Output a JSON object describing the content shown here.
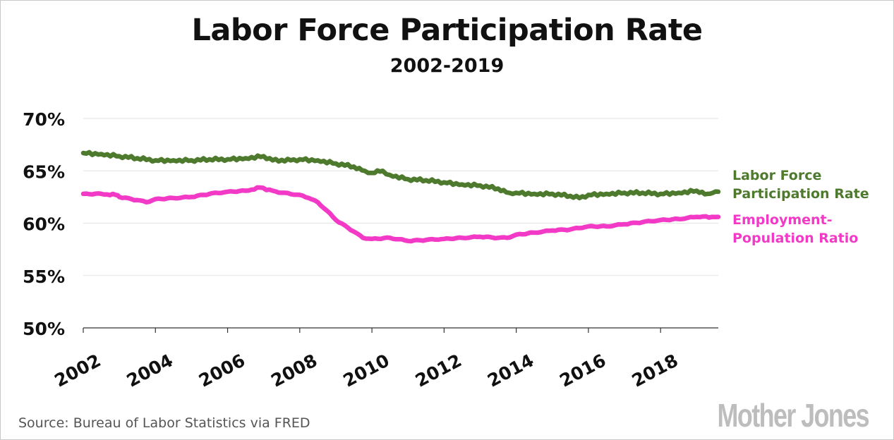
{
  "title": "Labor Force Participation Rate",
  "subtitle": "2002-2019",
  "source": "Source: Bureau of Labor Statistics via FRED",
  "brand": "Mother Jones",
  "chart_data": {
    "type": "line",
    "title": "Labor Force Participation Rate",
    "subtitle": "2002-2019",
    "xlabel": "",
    "ylabel": "",
    "xlim": [
      2002,
      2019.6
    ],
    "ylim": [
      50,
      70
    ],
    "y_ticks": [
      {
        "value": 70,
        "label": "70%"
      },
      {
        "value": 65,
        "label": "65%"
      },
      {
        "value": 60,
        "label": "60%"
      },
      {
        "value": 55,
        "label": "55%"
      },
      {
        "value": 50,
        "label": "50%"
      }
    ],
    "x_ticks": [
      {
        "value": 2002,
        "label": "2002"
      },
      {
        "value": 2004,
        "label": "2004"
      },
      {
        "value": 2006,
        "label": "2006"
      },
      {
        "value": 2008,
        "label": "2008"
      },
      {
        "value": 2010,
        "label": "2010"
      },
      {
        "value": 2012,
        "label": "2012"
      },
      {
        "value": 2014,
        "label": "2014"
      },
      {
        "value": 2016,
        "label": "2016"
      },
      {
        "value": 2018,
        "label": "2018"
      }
    ],
    "grid": true,
    "legend": "right, inline labels",
    "series": [
      {
        "name": "Labor Force Participation Rate",
        "label_lines": [
          "Labor Force",
          "Participation Rate"
        ],
        "color": "#4e7a2e",
        "points": [
          [
            2002.0,
            66.7
          ],
          [
            2002.5,
            66.6
          ],
          [
            2003.0,
            66.4
          ],
          [
            2003.5,
            66.2
          ],
          [
            2004.0,
            66.0
          ],
          [
            2004.5,
            66.0
          ],
          [
            2005.0,
            66.0
          ],
          [
            2005.5,
            66.1
          ],
          [
            2006.0,
            66.1
          ],
          [
            2006.5,
            66.2
          ],
          [
            2007.0,
            66.4
          ],
          [
            2007.25,
            66.0
          ],
          [
            2007.75,
            66.0
          ],
          [
            2008.0,
            66.1
          ],
          [
            2008.5,
            66.0
          ],
          [
            2009.0,
            65.7
          ],
          [
            2009.5,
            65.4
          ],
          [
            2009.8,
            65.0
          ],
          [
            2010.0,
            64.8
          ],
          [
            2010.3,
            65.0
          ],
          [
            2010.5,
            64.6
          ],
          [
            2011.0,
            64.2
          ],
          [
            2011.5,
            64.1
          ],
          [
            2012.0,
            63.9
          ],
          [
            2012.5,
            63.7
          ],
          [
            2013.0,
            63.6
          ],
          [
            2013.5,
            63.3
          ],
          [
            2013.8,
            62.9
          ],
          [
            2014.0,
            62.9
          ],
          [
            2014.5,
            62.8
          ],
          [
            2015.0,
            62.8
          ],
          [
            2015.5,
            62.6
          ],
          [
            2015.75,
            62.4
          ],
          [
            2016.0,
            62.7
          ],
          [
            2016.5,
            62.8
          ],
          [
            2017.0,
            62.9
          ],
          [
            2017.5,
            62.9
          ],
          [
            2018.0,
            62.8
          ],
          [
            2018.5,
            62.9
          ],
          [
            2019.0,
            63.1
          ],
          [
            2019.3,
            62.8
          ],
          [
            2019.6,
            63.0
          ]
        ]
      },
      {
        "name": "Employment-Population Ratio",
        "label_lines": [
          "Employment-",
          "Population Ratio"
        ],
        "color": "#f23ac6",
        "points": [
          [
            2002.0,
            62.8
          ],
          [
            2002.5,
            62.8
          ],
          [
            2002.9,
            62.7
          ],
          [
            2003.0,
            62.5
          ],
          [
            2003.5,
            62.2
          ],
          [
            2003.75,
            62.0
          ],
          [
            2004.0,
            62.3
          ],
          [
            2004.5,
            62.4
          ],
          [
            2005.0,
            62.5
          ],
          [
            2005.5,
            62.8
          ],
          [
            2006.0,
            63.0
          ],
          [
            2006.5,
            63.1
          ],
          [
            2006.9,
            63.4
          ],
          [
            2007.25,
            63.1
          ],
          [
            2007.5,
            62.9
          ],
          [
            2008.0,
            62.7
          ],
          [
            2008.25,
            62.4
          ],
          [
            2008.5,
            62.0
          ],
          [
            2008.75,
            61.2
          ],
          [
            2009.0,
            60.3
          ],
          [
            2009.5,
            59.2
          ],
          [
            2009.75,
            58.6
          ],
          [
            2010.0,
            58.5
          ],
          [
            2010.5,
            58.6
          ],
          [
            2011.0,
            58.3
          ],
          [
            2011.5,
            58.4
          ],
          [
            2012.0,
            58.5
          ],
          [
            2012.5,
            58.6
          ],
          [
            2013.0,
            58.7
          ],
          [
            2013.5,
            58.6
          ],
          [
            2013.75,
            58.6
          ],
          [
            2014.0,
            58.9
          ],
          [
            2014.5,
            59.1
          ],
          [
            2015.0,
            59.3
          ],
          [
            2015.5,
            59.4
          ],
          [
            2016.0,
            59.7
          ],
          [
            2016.5,
            59.7
          ],
          [
            2017.0,
            59.9
          ],
          [
            2017.5,
            60.1
          ],
          [
            2018.0,
            60.3
          ],
          [
            2018.5,
            60.4
          ],
          [
            2019.0,
            60.6
          ],
          [
            2019.6,
            60.6
          ]
        ]
      }
    ]
  }
}
